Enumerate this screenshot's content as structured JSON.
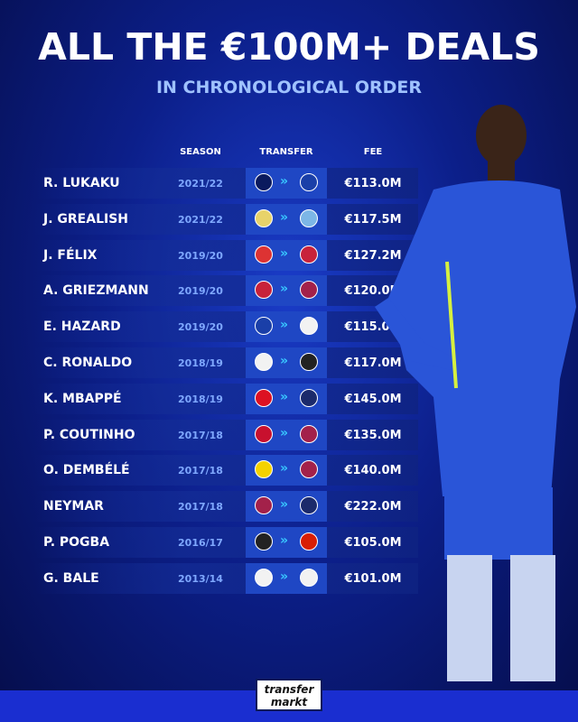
{
  "title": "ALL THE €100M+ DEALS",
  "subtitle": "IN CHRONOLOGICAL ORDER",
  "headers": {
    "season": "SEASON",
    "transfer": "TRANSFER",
    "fee": "FEE"
  },
  "rows": [
    {
      "name": "R. LUKAKU",
      "season": "2021/22",
      "from": "inter-badge",
      "to": "chelsea-badge",
      "fee": "€113.0M",
      "c1": "#0a1a5e",
      "c2": "#1a3fa8"
    },
    {
      "name": "J. GREALISH",
      "season": "2021/22",
      "from": "aston-villa-badge",
      "to": "man-city-badge",
      "fee": "€117.5M",
      "c1": "#e8d36a",
      "c2": "#7cb6e6"
    },
    {
      "name": "J. FÉLIX",
      "season": "2019/20",
      "from": "benfica-badge",
      "to": "atletico-badge",
      "fee": "€127.2M",
      "c1": "#d33",
      "c2": "#c8223a"
    },
    {
      "name": "A. GRIEZMANN",
      "season": "2019/20",
      "from": "atletico-badge",
      "to": "barcelona-badge",
      "fee": "€120.0M",
      "c1": "#c8223a",
      "c2": "#a3214a"
    },
    {
      "name": "E. HAZARD",
      "season": "2019/20",
      "from": "chelsea-badge",
      "to": "real-madrid-badge",
      "fee": "€115.0M",
      "c1": "#1a3fa8",
      "c2": "#f2f2f2"
    },
    {
      "name": "C. RONALDO",
      "season": "2018/19",
      "from": "real-madrid-badge",
      "to": "juventus-badge",
      "fee": "€117.0M",
      "c1": "#f2f2f2",
      "c2": "#222"
    },
    {
      "name": "K. MBAPPÉ",
      "season": "2018/19",
      "from": "monaco-badge",
      "to": "psg-badge",
      "fee": "€145.0M",
      "c1": "#d12",
      "c2": "#1b2a6b"
    },
    {
      "name": "P. COUTINHO",
      "season": "2017/18",
      "from": "liverpool-badge",
      "to": "barcelona-badge",
      "fee": "€135.0M",
      "c1": "#c8102e",
      "c2": "#a3214a"
    },
    {
      "name": "O. DEMBÉLÉ",
      "season": "2017/18",
      "from": "dortmund-badge",
      "to": "barcelona-badge",
      "fee": "€140.0M",
      "c1": "#f5d200",
      "c2": "#a3214a"
    },
    {
      "name": "NEYMAR",
      "season": "2017/18",
      "from": "barcelona-badge",
      "to": "psg-badge",
      "fee": "€222.0M",
      "c1": "#a3214a",
      "c2": "#1b2a6b"
    },
    {
      "name": "P. POGBA",
      "season": "2016/17",
      "from": "juventus-badge",
      "to": "man-united-badge",
      "fee": "€105.0M",
      "c1": "#222",
      "c2": "#d81e05"
    },
    {
      "name": "G. BALE",
      "season": "2013/14",
      "from": "tottenham-badge",
      "to": "real-madrid-badge",
      "fee": "€101.0M",
      "c1": "#f2f2f2",
      "c2": "#f2f2f2"
    }
  ],
  "logo": {
    "line1": "transfer",
    "line2": "markt"
  },
  "colors": {
    "accent": "#38c6ff",
    "season": "#7fa8ff",
    "transfer_box": "#1f47c4"
  }
}
